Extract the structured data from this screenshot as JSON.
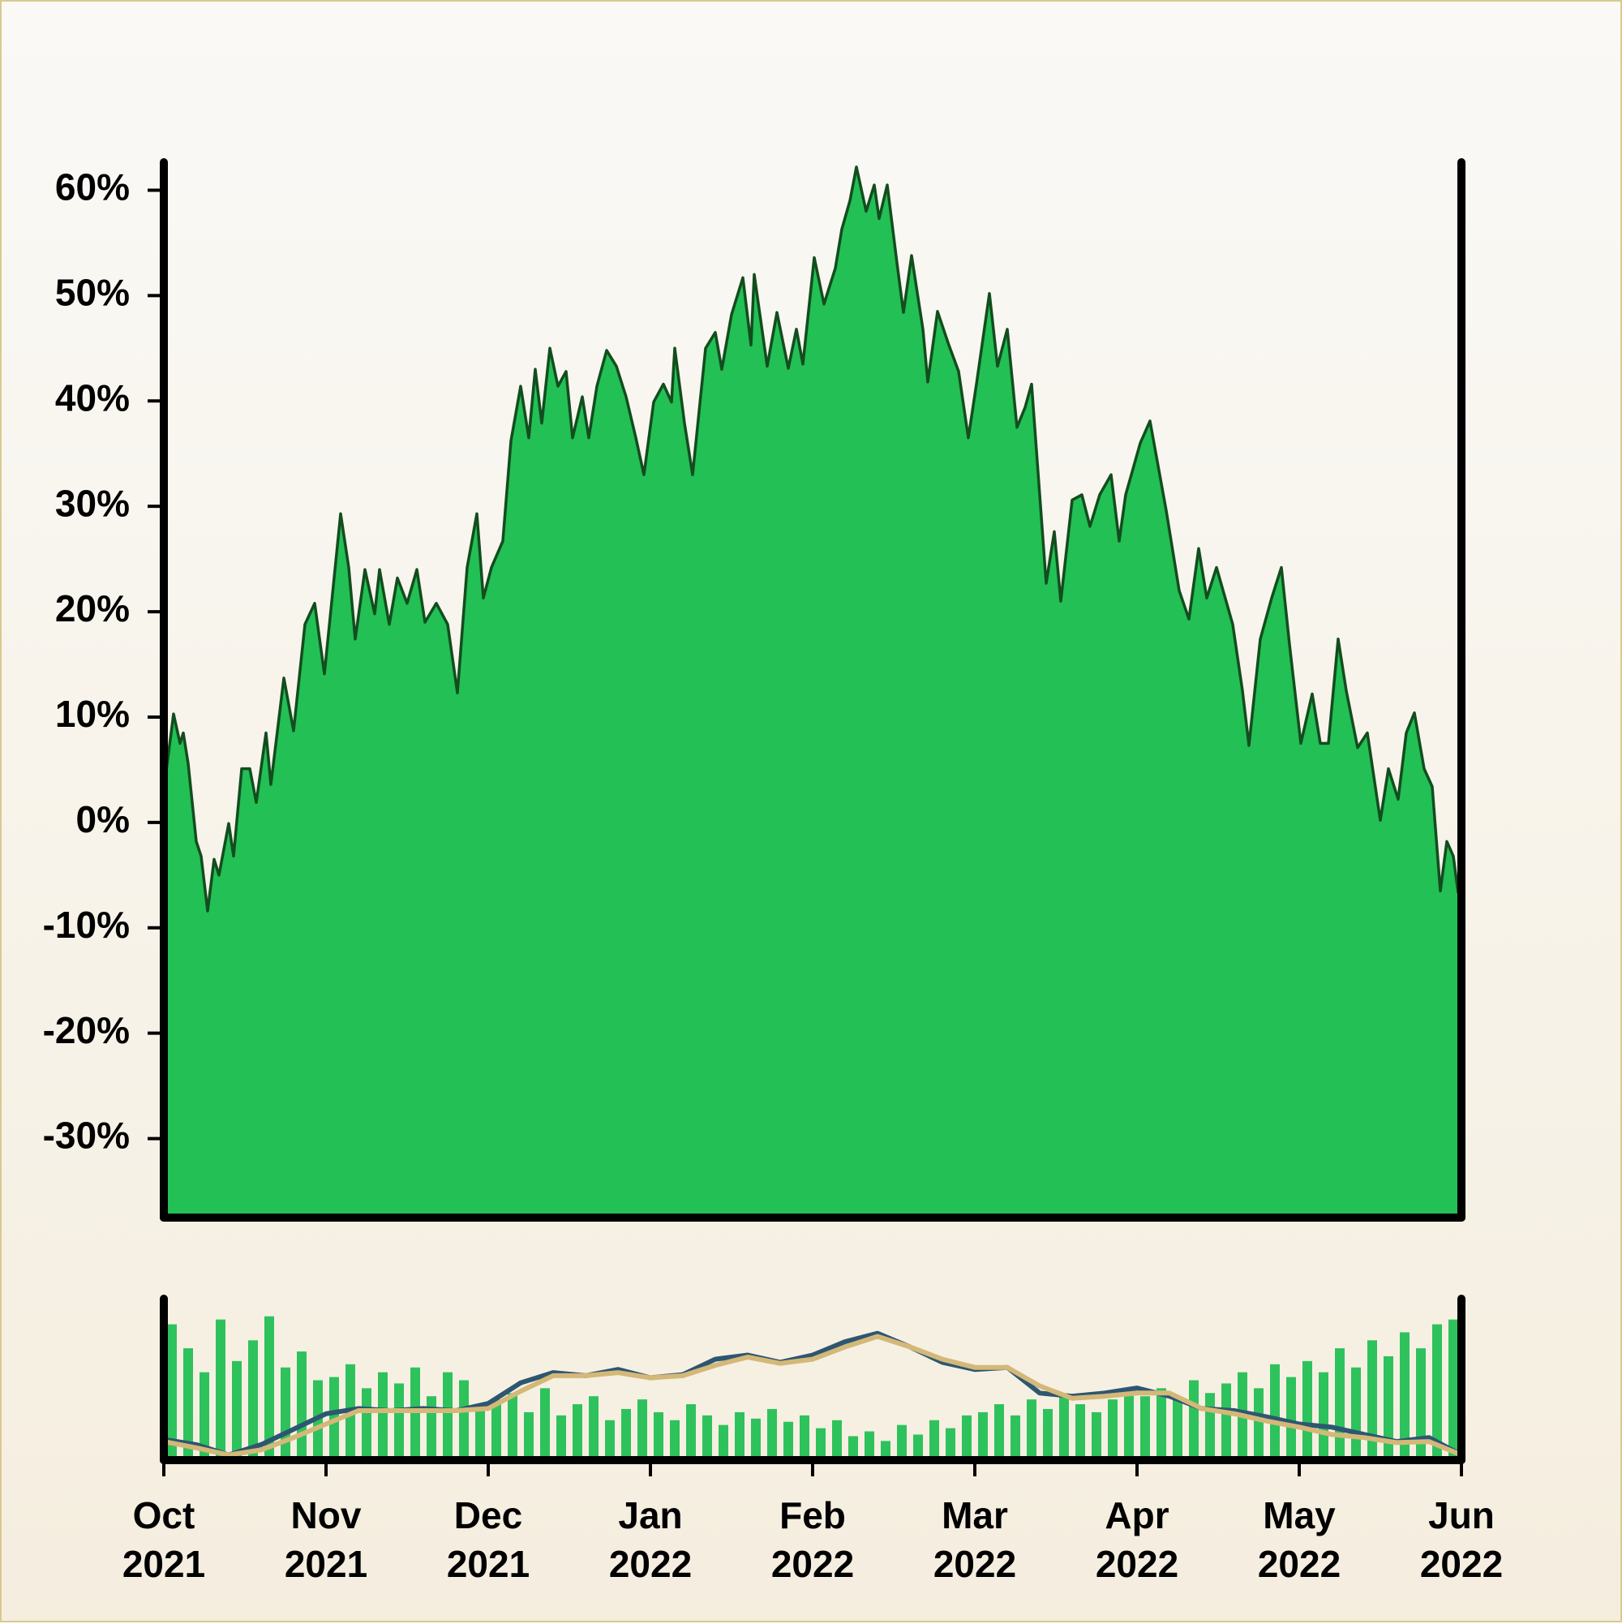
{
  "chart_data": [
    {
      "type": "area",
      "color": "#22c055",
      "line_color": "#134d1e",
      "xlim": [
        0,
        8
      ],
      "ylim": [
        -37.5,
        62.5
      ],
      "yticks": [
        {
          "value": -30,
          "label": "-30%"
        },
        {
          "value": -20,
          "label": "-20%"
        },
        {
          "value": -10,
          "label": "-10%"
        },
        {
          "value": 0,
          "label": "0%"
        },
        {
          "value": 10,
          "label": "10%"
        },
        {
          "value": 20,
          "label": "20%"
        },
        {
          "value": 30,
          "label": "30%"
        },
        {
          "value": 40,
          "label": "40%"
        },
        {
          "value": 50,
          "label": "50%"
        },
        {
          "value": 60,
          "label": "60%"
        }
      ],
      "x": [
        0.0,
        0.06,
        0.1,
        0.12,
        0.15,
        0.2,
        0.23,
        0.27,
        0.31,
        0.34,
        0.4,
        0.43,
        0.48,
        0.53,
        0.57,
        0.63,
        0.66,
        0.74,
        0.8,
        0.87,
        0.93,
        0.99,
        1.09,
        1.14,
        1.18,
        1.24,
        1.3,
        1.33,
        1.39,
        1.44,
        1.5,
        1.56,
        1.61,
        1.68,
        1.75,
        1.81,
        1.87,
        1.93,
        1.97,
        2.02,
        2.09,
        2.14,
        2.2,
        2.25,
        2.29,
        2.33,
        2.38,
        2.43,
        2.48,
        2.52,
        2.58,
        2.62,
        2.67,
        2.73,
        2.79,
        2.85,
        2.91,
        2.96,
        3.02,
        3.08,
        3.13,
        3.15,
        3.21,
        3.26,
        3.34,
        3.4,
        3.44,
        3.5,
        3.57,
        3.62,
        3.64,
        3.72,
        3.78,
        3.85,
        3.9,
        3.94,
        4.01,
        4.07,
        4.14,
        4.18,
        4.23,
        4.27,
        4.33,
        4.38,
        4.41,
        4.46,
        4.52,
        4.56,
        4.61,
        4.68,
        4.71,
        4.77,
        4.84,
        4.9,
        4.96,
        5.01,
        5.09,
        5.14,
        5.2,
        5.26,
        5.31,
        5.35,
        5.44,
        5.49,
        5.53,
        5.6,
        5.66,
        5.71,
        5.77,
        5.84,
        5.89,
        5.93,
        6.02,
        6.08,
        6.18,
        6.26,
        6.32,
        6.38,
        6.43,
        6.49,
        6.59,
        6.65,
        6.69,
        6.76,
        6.83,
        6.89,
        6.94,
        7.01,
        7.08,
        7.13,
        7.18,
        7.24,
        7.29,
        7.36,
        7.42,
        7.5,
        7.55,
        7.61,
        7.66,
        7.71,
        7.77,
        7.82,
        7.87,
        7.91,
        7.95,
        7.98
      ],
      "values": [
        3.1,
        10.3,
        7.5,
        8.5,
        5.6,
        -1.8,
        -3.2,
        -8.4,
        -3.5,
        -5.0,
        -0.1,
        -3.2,
        5.1,
        5.1,
        1.9,
        8.5,
        3.6,
        13.7,
        8.7,
        18.8,
        20.8,
        14.1,
        29.3,
        24.2,
        17.4,
        24.0,
        19.8,
        24.0,
        18.8,
        23.2,
        20.8,
        24.0,
        19.0,
        20.8,
        18.8,
        12.3,
        24.2,
        29.3,
        21.3,
        24.2,
        26.7,
        36.2,
        41.4,
        36.5,
        43.0,
        37.9,
        45.0,
        41.4,
        42.8,
        36.5,
        40.4,
        36.5,
        41.4,
        44.8,
        43.3,
        40.4,
        36.5,
        33.0,
        39.9,
        41.6,
        39.9,
        45.0,
        37.9,
        33.0,
        45.0,
        46.5,
        43.0,
        48.2,
        51.7,
        45.3,
        52.0,
        43.3,
        48.4,
        43.1,
        46.8,
        43.5,
        53.6,
        49.2,
        52.6,
        56.3,
        59.0,
        62.2,
        58.0,
        60.5,
        57.3,
        60.5,
        53.1,
        48.4,
        53.8,
        46.8,
        41.8,
        48.5,
        45.3,
        42.8,
        36.5,
        41.6,
        50.2,
        43.3,
        46.8,
        37.5,
        39.4,
        41.6,
        22.7,
        27.6,
        21.0,
        30.6,
        31.1,
        28.1,
        31.1,
        33.0,
        26.7,
        31.1,
        36.0,
        38.1,
        29.6,
        22.0,
        19.3,
        26.0,
        21.3,
        24.2,
        18.8,
        12.5,
        7.3,
        17.4,
        21.3,
        24.2,
        16.9,
        7.5,
        12.2,
        7.5,
        7.5,
        17.4,
        12.5,
        7.1,
        8.5,
        0.2,
        5.1,
        2.2,
        8.5,
        10.4,
        5.1,
        3.4,
        -6.5,
        -1.8,
        -3.2,
        -6.7
      ]
    },
    {
      "type": "bar",
      "xlim": [
        0,
        8
      ],
      "ylim": [
        -11,
        81
      ],
      "y2lim": [
        0,
        100
      ],
      "xticks": [
        {
          "value": 0,
          "label": "Oct\n2021"
        },
        {
          "value": 1,
          "label": "Nov\n2021"
        },
        {
          "value": 2,
          "label": "Dec\n2021"
        },
        {
          "value": 3,
          "label": "Jan\n2022"
        },
        {
          "value": 4,
          "label": "Feb\n2022"
        },
        {
          "value": 5,
          "label": "Mar\n2022"
        },
        {
          "value": 6,
          "label": "Apr\n2022"
        },
        {
          "value": 7,
          "label": "May\n2022"
        },
        {
          "value": 8,
          "label": "Jun\n2022"
        }
      ],
      "series": [
        {
          "type": "bar",
          "axis": "y2",
          "color": "#2ec25c",
          "x": [
            0.05,
            0.15,
            0.25,
            0.35,
            0.45,
            0.55,
            0.65,
            0.75,
            0.85,
            0.95,
            1.05,
            1.15,
            1.25,
            1.35,
            1.45,
            1.55,
            1.65,
            1.75,
            1.85,
            1.95,
            2.05,
            2.15,
            2.25,
            2.35,
            2.45,
            2.55,
            2.65,
            2.75,
            2.85,
            2.95,
            3.05,
            3.15,
            3.25,
            3.35,
            3.45,
            3.55,
            3.65,
            3.75,
            3.85,
            3.95,
            4.05,
            4.15,
            4.25,
            4.35,
            4.45,
            4.55,
            4.65,
            4.75,
            4.85,
            4.95,
            5.05,
            5.15,
            5.25,
            5.35,
            5.45,
            5.55,
            5.65,
            5.75,
            5.85,
            5.95,
            6.05,
            6.15,
            6.25,
            6.35,
            6.45,
            6.55,
            6.65,
            6.75,
            6.85,
            6.95,
            7.05,
            7.15,
            7.25,
            7.35,
            7.45,
            7.55,
            7.65,
            7.75,
            7.85,
            7.95
          ],
          "values": [
            85,
            70,
            55,
            88,
            62,
            75,
            90,
            58,
            68,
            50,
            52,
            60,
            45,
            55,
            48,
            58,
            40,
            55,
            50,
            35,
            38,
            42,
            30,
            45,
            28,
            35,
            40,
            25,
            32,
            38,
            30,
            25,
            35,
            28,
            22,
            30,
            26,
            32,
            24,
            28,
            20,
            25,
            15,
            18,
            12,
            22,
            16,
            25,
            20,
            28,
            30,
            35,
            28,
            38,
            32,
            40,
            35,
            30,
            38,
            42,
            40,
            45,
            38,
            50,
            42,
            48,
            55,
            45,
            60,
            52,
            62,
            55,
            70,
            58,
            75,
            65,
            80,
            70,
            85,
            88
          ]
        },
        {
          "type": "line",
          "color": "#2d5671",
          "x": [
            0,
            0.2,
            0.4,
            0.6,
            0.8,
            1,
            1.2,
            1.4,
            1.6,
            1.8,
            2,
            2.2,
            2.4,
            2.6,
            2.8,
            3,
            3.2,
            3.4,
            3.6,
            3.8,
            4,
            4.2,
            4.4,
            4.6,
            4.8,
            5,
            5.2,
            5.4,
            5.6,
            5.8,
            6,
            6.2,
            6.4,
            6.6,
            6.8,
            7,
            7.2,
            7.4,
            7.6,
            7.8,
            8
          ],
          "values": [
            0.9,
            -2.1,
            -8.0,
            -2.1,
            6.8,
            15.7,
            18.7,
            17.5,
            18.7,
            17.5,
            21.6,
            33.5,
            39.4,
            37.6,
            41.2,
            36.4,
            38.2,
            47.1,
            49.5,
            45.3,
            49.5,
            57.2,
            62.0,
            54.2,
            45.3,
            41.2,
            42.4,
            27.6,
            25.8,
            27.6,
            30.5,
            25.8,
            18.7,
            17.5,
            13.9,
            9.8,
            8.0,
            3.8,
            -0.3,
            2.0,
            -8.0
          ]
        },
        {
          "type": "line",
          "color": "#d4b878",
          "x": [
            0,
            0.2,
            0.4,
            0.6,
            0.8,
            1,
            1.2,
            1.4,
            1.6,
            1.8,
            2,
            2.2,
            2.4,
            2.6,
            2.8,
            3,
            3.2,
            3.4,
            3.6,
            3.8,
            4,
            4.2,
            4.4,
            4.6,
            4.8,
            5,
            5.2,
            5.4,
            5.6,
            5.8,
            6,
            6.2,
            6.4,
            6.6,
            6.8,
            7,
            7.2,
            7.4,
            7.6,
            7.8,
            8
          ],
          "values": [
            -0.3,
            -3.9,
            -8.0,
            -5.1,
            2.0,
            9.8,
            17.5,
            17.5,
            17.5,
            17.5,
            18.7,
            28.7,
            37.6,
            37.6,
            39.4,
            36.4,
            37.6,
            43.6,
            48.3,
            44.7,
            47.1,
            54.2,
            60.2,
            54.2,
            47.1,
            42.4,
            42.4,
            31.7,
            24.6,
            25.8,
            27.6,
            27.6,
            18.7,
            15.7,
            11.5,
            8.0,
            3.8,
            2.0,
            -0.9,
            -0.3,
            -8.0
          ]
        }
      ]
    }
  ]
}
